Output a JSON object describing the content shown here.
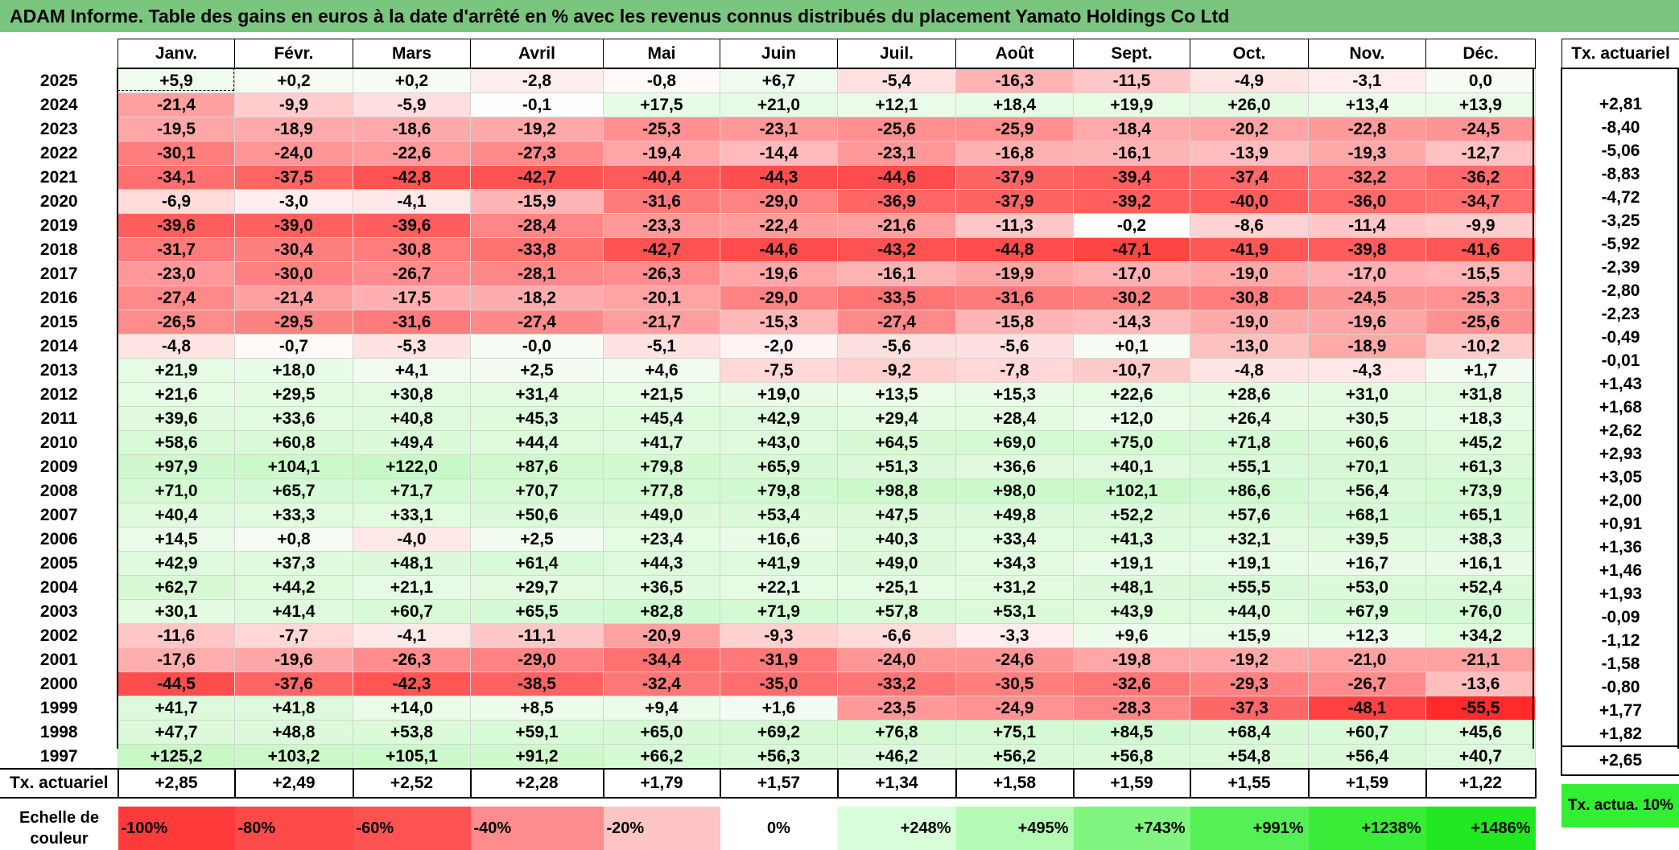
{
  "title": "ADAM Informe. Table des gains en euros à la date d'arrêté en % avec les revenus connus distribués du placement Yamato Holdings Co Ltd",
  "chart_data": {
    "type": "heatmap",
    "title": "ADAM Informe. Table des gains en euros à la date d'arrêté en % avec les revenus connus distribués du placement Yamato Holdings Co Ltd",
    "months": [
      "Janv.",
      "Févr.",
      "Mars",
      "Avril",
      "Mai",
      "Juin",
      "Juil.",
      "Août",
      "Sept.",
      "Oct.",
      "Nov.",
      "Déc."
    ],
    "right_header": "Tx. actuariel",
    "rows": [
      {
        "year": "2025",
        "values": [
          "+5,9",
          "+0,2",
          "+0,2",
          "-2,8",
          "-0,8",
          "+6,7",
          "-5,4",
          "-16,3",
          "-11,5",
          "-4,9",
          "-3,1",
          "0,0"
        ],
        "tx": ""
      },
      {
        "year": "2024",
        "values": [
          "-21,4",
          "-9,9",
          "-5,9",
          "-0,1",
          "+17,5",
          "+21,0",
          "+12,1",
          "+18,4",
          "+19,9",
          "+26,0",
          "+13,4",
          "+13,9"
        ],
        "tx": "+2,81"
      },
      {
        "year": "2023",
        "values": [
          "-19,5",
          "-18,9",
          "-18,6",
          "-19,2",
          "-25,3",
          "-23,1",
          "-25,6",
          "-25,9",
          "-18,4",
          "-20,2",
          "-22,8",
          "-24,5"
        ],
        "tx": "-8,40"
      },
      {
        "year": "2022",
        "values": [
          "-30,1",
          "-24,0",
          "-22,6",
          "-27,3",
          "-19,4",
          "-14,4",
          "-23,1",
          "-16,8",
          "-16,1",
          "-13,9",
          "-19,3",
          "-12,7"
        ],
        "tx": "-5,06"
      },
      {
        "year": "2021",
        "values": [
          "-34,1",
          "-37,5",
          "-42,8",
          "-42,7",
          "-40,4",
          "-44,3",
          "-44,6",
          "-37,9",
          "-39,4",
          "-37,4",
          "-32,2",
          "-36,2"
        ],
        "tx": "-8,83"
      },
      {
        "year": "2020",
        "values": [
          "-6,9",
          "-3,0",
          "-4,1",
          "-15,9",
          "-31,6",
          "-29,0",
          "-36,9",
          "-37,9",
          "-39,2",
          "-40,0",
          "-36,0",
          "-34,7"
        ],
        "tx": "-4,72"
      },
      {
        "year": "2019",
        "values": [
          "-39,6",
          "-39,0",
          "-39,6",
          "-28,4",
          "-23,3",
          "-22,4",
          "-21,6",
          "-11,3",
          "-0,2",
          "-8,6",
          "-11,4",
          "-9,9"
        ],
        "tx": "-3,25"
      },
      {
        "year": "2018",
        "values": [
          "-31,7",
          "-30,4",
          "-30,8",
          "-33,8",
          "-42,7",
          "-44,6",
          "-43,2",
          "-44,8",
          "-47,1",
          "-41,9",
          "-39,8",
          "-41,6"
        ],
        "tx": "-5,92"
      },
      {
        "year": "2017",
        "values": [
          "-23,0",
          "-30,0",
          "-26,7",
          "-28,1",
          "-26,3",
          "-19,6",
          "-16,1",
          "-19,9",
          "-17,0",
          "-19,0",
          "-17,0",
          "-15,5"
        ],
        "tx": "-2,39"
      },
      {
        "year": "2016",
        "values": [
          "-27,4",
          "-21,4",
          "-17,5",
          "-18,2",
          "-20,1",
          "-29,0",
          "-33,5",
          "-31,6",
          "-30,2",
          "-30,8",
          "-24,5",
          "-25,3"
        ],
        "tx": "-2,80"
      },
      {
        "year": "2015",
        "values": [
          "-26,5",
          "-29,5",
          "-31,6",
          "-27,4",
          "-21,7",
          "-15,3",
          "-27,4",
          "-15,8",
          "-14,3",
          "-19,0",
          "-19,6",
          "-25,6"
        ],
        "tx": "-2,23"
      },
      {
        "year": "2014",
        "values": [
          "-4,8",
          "-0,7",
          "-5,3",
          "-0,0",
          "-5,1",
          "-2,0",
          "-5,6",
          "-5,6",
          "+0,1",
          "-13,0",
          "-18,9",
          "-10,2"
        ],
        "tx": "-0,49"
      },
      {
        "year": "2013",
        "values": [
          "+21,9",
          "+18,0",
          "+4,1",
          "+2,5",
          "+4,6",
          "-7,5",
          "-9,2",
          "-7,8",
          "-10,7",
          "-4,8",
          "-4,3",
          "+1,7"
        ],
        "tx": "-0,01"
      },
      {
        "year": "2012",
        "values": [
          "+21,6",
          "+29,5",
          "+30,8",
          "+31,4",
          "+21,5",
          "+19,0",
          "+13,5",
          "+15,3",
          "+22,6",
          "+28,6",
          "+31,0",
          "+31,8"
        ],
        "tx": "+1,43"
      },
      {
        "year": "2011",
        "values": [
          "+39,6",
          "+33,6",
          "+40,8",
          "+45,3",
          "+45,4",
          "+42,9",
          "+29,4",
          "+28,4",
          "+12,0",
          "+26,4",
          "+30,5",
          "+18,3"
        ],
        "tx": "+1,68"
      },
      {
        "year": "2010",
        "values": [
          "+58,6",
          "+60,8",
          "+49,4",
          "+44,4",
          "+41,7",
          "+43,0",
          "+64,5",
          "+69,0",
          "+75,0",
          "+71,8",
          "+60,6",
          "+45,2"
        ],
        "tx": "+2,62"
      },
      {
        "year": "2009",
        "values": [
          "+97,9",
          "+104,1",
          "+122,0",
          "+87,6",
          "+79,8",
          "+65,9",
          "+51,3",
          "+36,6",
          "+40,1",
          "+55,1",
          "+70,1",
          "+61,3"
        ],
        "tx": "+2,93"
      },
      {
        "year": "2008",
        "values": [
          "+71,0",
          "+65,7",
          "+71,7",
          "+70,7",
          "+77,8",
          "+79,8",
          "+98,8",
          "+98,0",
          "+102,1",
          "+86,6",
          "+56,4",
          "+73,9"
        ],
        "tx": "+3,05"
      },
      {
        "year": "2007",
        "values": [
          "+40,4",
          "+33,3",
          "+33,1",
          "+50,6",
          "+49,0",
          "+53,4",
          "+47,5",
          "+49,8",
          "+52,2",
          "+57,6",
          "+68,1",
          "+65,1"
        ],
        "tx": "+2,00"
      },
      {
        "year": "2006",
        "values": [
          "+14,5",
          "+0,8",
          "-4,0",
          "+2,5",
          "+23,4",
          "+16,6",
          "+40,3",
          "+33,4",
          "+41,3",
          "+32,1",
          "+39,5",
          "+38,3"
        ],
        "tx": "+0,91"
      },
      {
        "year": "2005",
        "values": [
          "+42,9",
          "+37,3",
          "+48,1",
          "+61,4",
          "+44,3",
          "+41,9",
          "+49,0",
          "+34,3",
          "+19,1",
          "+19,1",
          "+16,7",
          "+16,1"
        ],
        "tx": "+1,36"
      },
      {
        "year": "2004",
        "values": [
          "+62,7",
          "+44,2",
          "+21,1",
          "+29,7",
          "+36,5",
          "+22,1",
          "+25,1",
          "+31,2",
          "+48,1",
          "+55,5",
          "+53,0",
          "+52,4"
        ],
        "tx": "+1,46"
      },
      {
        "year": "2003",
        "values": [
          "+30,1",
          "+41,4",
          "+60,7",
          "+65,5",
          "+82,8",
          "+71,9",
          "+57,8",
          "+53,1",
          "+43,9",
          "+44,0",
          "+67,9",
          "+76,0"
        ],
        "tx": "+1,93"
      },
      {
        "year": "2002",
        "values": [
          "-11,6",
          "-7,7",
          "-4,1",
          "-11,1",
          "-20,9",
          "-9,3",
          "-6,6",
          "-3,3",
          "+9,6",
          "+15,9",
          "+12,3",
          "+34,2"
        ],
        "tx": "-0,09"
      },
      {
        "year": "2001",
        "values": [
          "-17,6",
          "-19,6",
          "-26,3",
          "-29,0",
          "-34,4",
          "-31,9",
          "-24,0",
          "-24,6",
          "-19,8",
          "-19,2",
          "-21,0",
          "-21,1"
        ],
        "tx": "-1,12"
      },
      {
        "year": "2000",
        "values": [
          "-44,5",
          "-37,6",
          "-42,3",
          "-38,5",
          "-32,4",
          "-35,0",
          "-33,2",
          "-30,5",
          "-32,6",
          "-29,3",
          "-26,7",
          "-13,6"
        ],
        "tx": "-1,58"
      },
      {
        "year": "1999",
        "values": [
          "+41,7",
          "+41,8",
          "+14,0",
          "+8,5",
          "+9,4",
          "+1,6",
          "-23,5",
          "-24,9",
          "-28,3",
          "-37,3",
          "-48,1",
          "-55,5"
        ],
        "tx": "-0,80"
      },
      {
        "year": "1998",
        "values": [
          "+47,7",
          "+48,8",
          "+53,8",
          "+59,1",
          "+65,0",
          "+69,2",
          "+76,8",
          "+75,1",
          "+84,5",
          "+68,4",
          "+60,7",
          "+45,6"
        ],
        "tx": "+1,77"
      },
      {
        "year": "1997",
        "values": [
          "+125,2",
          "+103,2",
          "+105,1",
          "+91,2",
          "+66,2",
          "+56,3",
          "+46,2",
          "+56,2",
          "+56,8",
          "+54,8",
          "+56,4",
          "+40,7"
        ],
        "tx": "+1,82"
      }
    ],
    "footer": {
      "label": "Tx. actuariel",
      "values": [
        "+2,85",
        "+2,49",
        "+2,52",
        "+2,28",
        "+1,79",
        "+1,57",
        "+1,34",
        "+1,58",
        "+1,59",
        "+1,55",
        "+1,59",
        "+1,22"
      ],
      "total": "+2,65"
    },
    "scale": {
      "label": "Echelle de couleur",
      "items": [
        "-100%",
        "-80%",
        "-60%",
        "-40%",
        "-20%",
        "0%",
        "+248%",
        "+495%",
        "+743%",
        "+991%",
        "+1238%",
        "+1486%"
      ],
      "right_label": "Tx. actua. 10%"
    },
    "colors": {
      "negative_full": "#ff2a2a",
      "neutral": "#ffffff",
      "positive_full": "#22ee22",
      "title_bar": "#7bc67e"
    }
  }
}
